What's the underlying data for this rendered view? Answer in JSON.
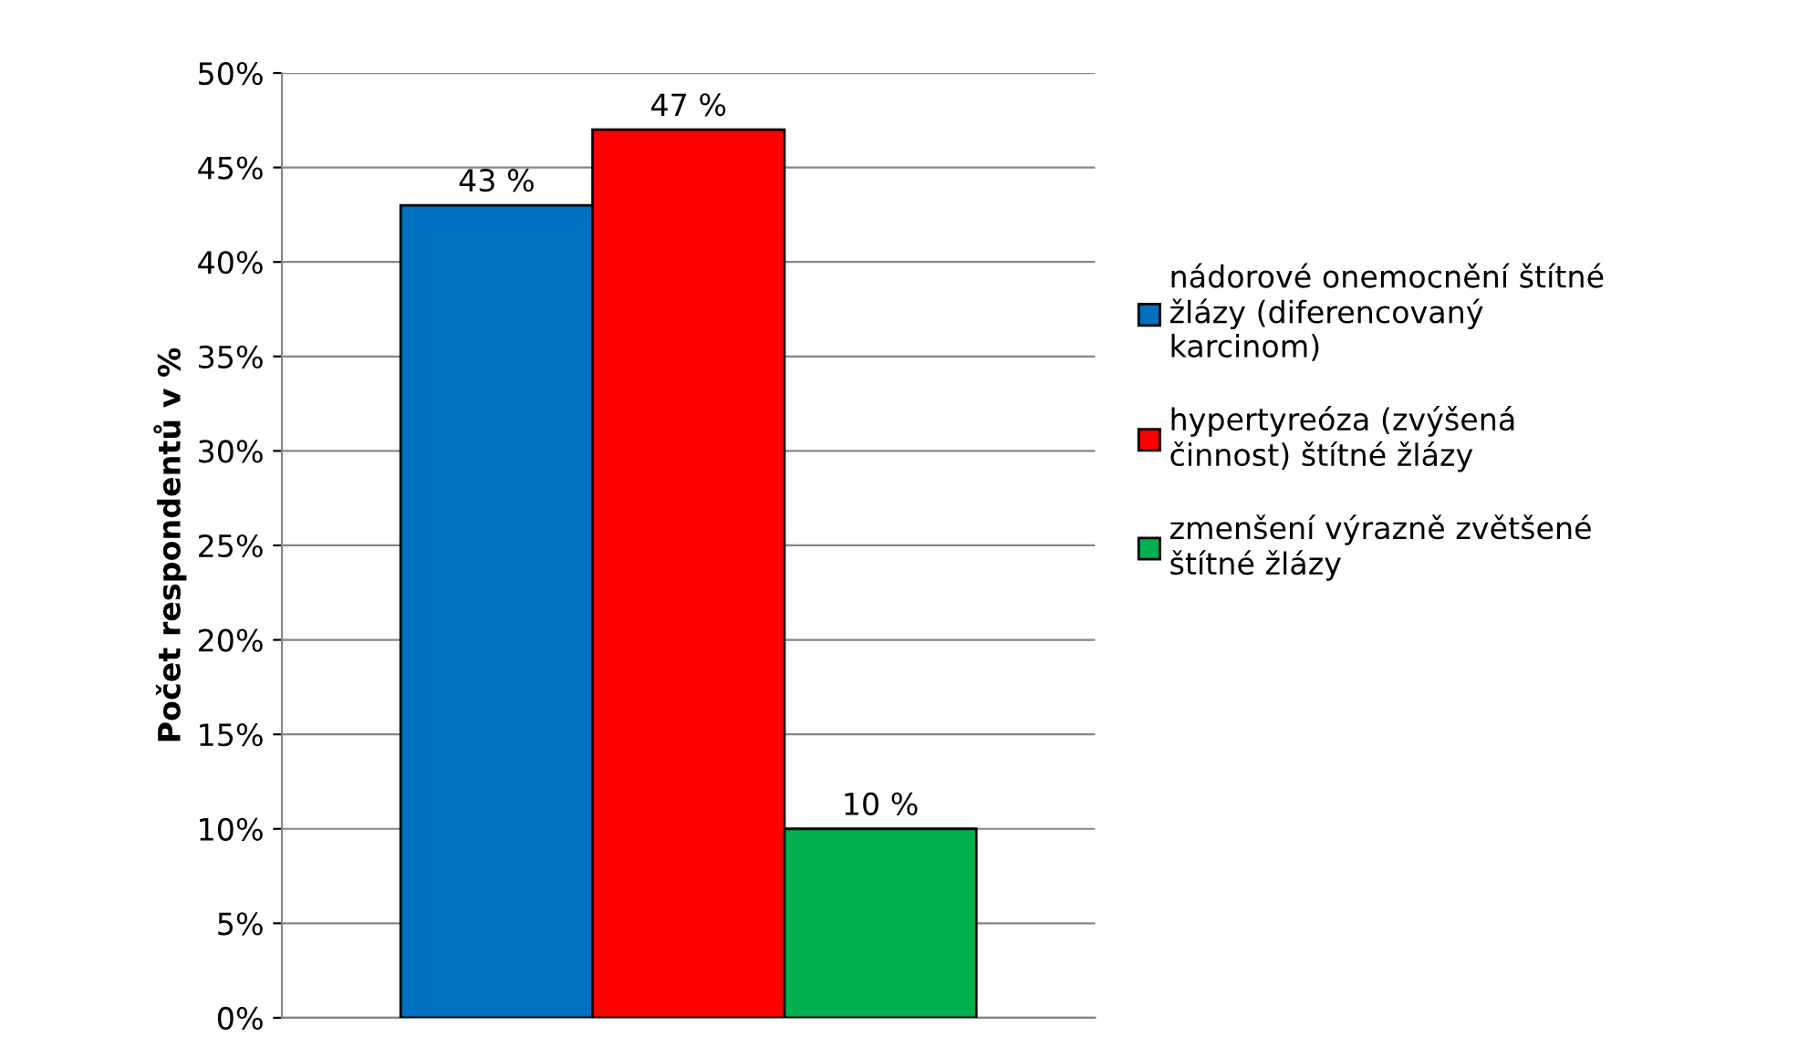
{
  "chart_data": {
    "type": "bar",
    "ylabel": "Počet respondentů v %",
    "categories": [
      null
    ],
    "series": [
      {
        "name": "nádorové onemocnění štítné žlázy (diferencovaný karcinom)",
        "color": "#0070c0",
        "values": [
          43
        ],
        "value_labels": [
          "43 %"
        ]
      },
      {
        "name": "hypertyreóza (zvýšená činnost) štítné žlázy",
        "color": "#ff0000",
        "values": [
          47
        ],
        "value_labels": [
          "47 %"
        ]
      },
      {
        "name": "zmenšení výrazně zvětšené štítné žlázy",
        "color": "#00b050",
        "values": [
          10
        ],
        "value_labels": [
          "10 %"
        ]
      }
    ],
    "ylim": [
      0,
      50
    ],
    "yticks": [
      {
        "value": 0,
        "label": "0%"
      },
      {
        "value": 5,
        "label": "5%"
      },
      {
        "value": 10,
        "label": "10%"
      },
      {
        "value": 15,
        "label": "15%"
      },
      {
        "value": 20,
        "label": "20%"
      },
      {
        "value": 25,
        "label": "25%"
      },
      {
        "value": 30,
        "label": "30%"
      },
      {
        "value": 35,
        "label": "35%"
      },
      {
        "value": 40,
        "label": "40%"
      },
      {
        "value": 45,
        "label": "45%"
      },
      {
        "value": 50,
        "label": "50%"
      }
    ],
    "grid": "y",
    "legend": "right"
  }
}
